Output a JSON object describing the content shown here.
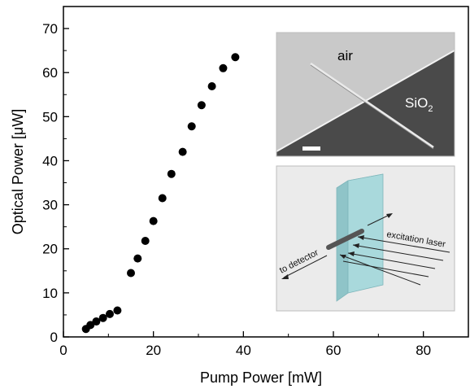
{
  "chart_data": {
    "type": "scatter",
    "xlabel": "Pump Power [mW]",
    "ylabel": "Optical Power [μW]",
    "xlim": [
      0,
      90
    ],
    "ylim": [
      0,
      75
    ],
    "x_ticks": [
      0,
      20,
      40,
      60,
      80
    ],
    "y_ticks": [
      0,
      10,
      20,
      30,
      40,
      50,
      60,
      70
    ],
    "x": [
      5,
      6,
      7.3,
      8.8,
      10.3,
      12,
      15,
      16.5,
      18.2,
      20,
      22,
      24,
      26.5,
      28.5,
      30.7,
      33,
      35.5,
      38.2
    ],
    "y": [
      1.8,
      2.7,
      3.5,
      4.3,
      5.2,
      6,
      14.5,
      17.8,
      21.8,
      26.3,
      31.5,
      37,
      42,
      47.8,
      52.6,
      56.9,
      61,
      63.5
    ],
    "marker_color": "#000000",
    "grid": false
  },
  "insets": {
    "sem": {
      "air_label": "air",
      "sio2_label": "SiO",
      "sio2_sub": "2",
      "colors": {
        "air": "#c9c9c9",
        "substrate": "#4a4a4a",
        "wire": "#e6e6e6",
        "scale_bar": "#ffffff"
      }
    },
    "schematic": {
      "excitation_label": "excitation laser",
      "detector_label": "to detector",
      "colors": {
        "background": "#ebebeb",
        "slab": "#a9d9dc",
        "slab_edge": "#7fb6bb",
        "nanowire": "#555555"
      }
    }
  }
}
